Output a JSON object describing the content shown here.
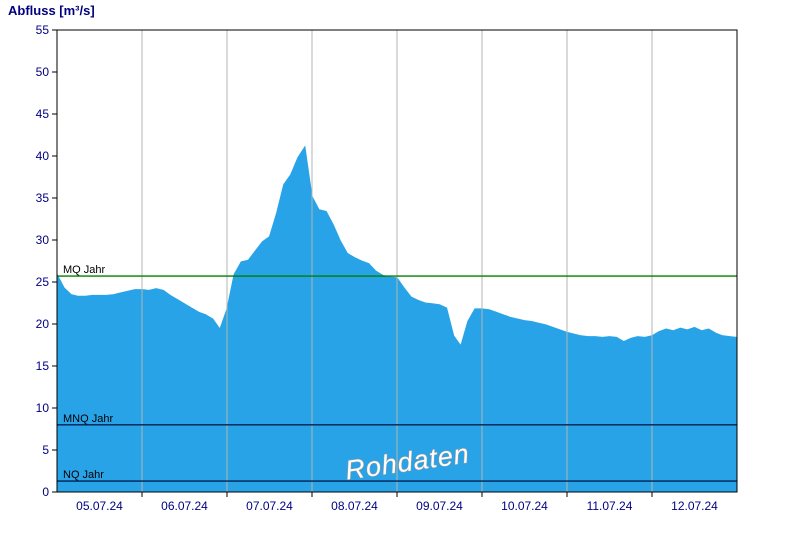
{
  "title": "Abfluss [m³/s]",
  "watermark": "Rohdaten",
  "chart_data": {
    "type": "area",
    "title": "Abfluss [m³/s]",
    "ylabel": "Abfluss [m³/s]",
    "ylim": [
      0,
      55
    ],
    "y_ticks": [
      0,
      5,
      10,
      15,
      20,
      25,
      30,
      35,
      40,
      45,
      50,
      55
    ],
    "x_tick_labels": [
      "05.07.24",
      "06.07.24",
      "07.07.24",
      "08.07.24",
      "09.07.24",
      "10.07.24",
      "11.07.24",
      "12.07.24"
    ],
    "x_total_hours": 192,
    "x_step_hours": 2,
    "grid": "vertical-day-boundaries",
    "legend_position": "none",
    "area_color": "#29a3e8",
    "axis_text_color": "#000080",
    "values": [
      25.9,
      24.3,
      23.5,
      23.3,
      23.3,
      23.4,
      23.4,
      23.4,
      23.5,
      23.7,
      23.9,
      24.1,
      24.1,
      24.0,
      24.2,
      24.0,
      23.4,
      22.9,
      22.4,
      21.9,
      21.4,
      21.1,
      20.6,
      19.4,
      21.8,
      25.9,
      27.4,
      27.6,
      28.7,
      29.8,
      30.4,
      33.2,
      36.6,
      37.8,
      39.8,
      41.1,
      35.2,
      33.6,
      33.4,
      31.8,
      29.9,
      28.4,
      27.9,
      27.5,
      27.2,
      26.3,
      25.8,
      25.6,
      25.5,
      24.3,
      23.2,
      22.8,
      22.5,
      22.4,
      22.3,
      21.9,
      18.6,
      17.4,
      20.3,
      21.8,
      21.8,
      21.7,
      21.4,
      21.1,
      20.8,
      20.6,
      20.4,
      20.3,
      20.1,
      19.9,
      19.6,
      19.3,
      19.0,
      18.8,
      18.6,
      18.5,
      18.5,
      18.4,
      18.5,
      18.4,
      17.9,
      18.3,
      18.5,
      18.4,
      18.6,
      19.1,
      19.4,
      19.2,
      19.5,
      19.3,
      19.6,
      19.2,
      19.4,
      18.9,
      18.6,
      18.5,
      18.4
    ],
    "reference_lines": [
      {
        "label": "MQ Jahr",
        "value": 25.7,
        "color": "#008000"
      },
      {
        "label": "MNQ Jahr",
        "value": 8.0,
        "color": "#002050"
      },
      {
        "label": "NQ Jahr",
        "value": 1.3,
        "color": "#002050"
      }
    ]
  }
}
